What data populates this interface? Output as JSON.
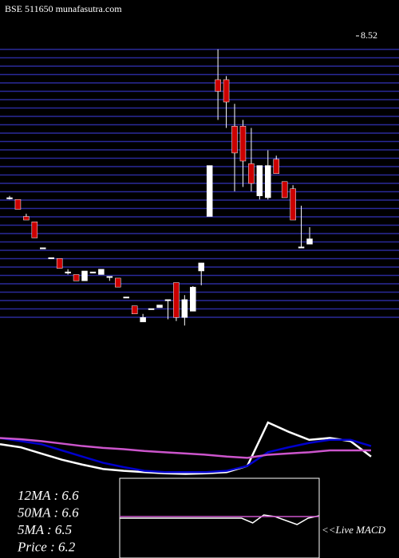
{
  "chart_data": {
    "type": "candlestick",
    "title": "BSE 511650 munafasutra.com",
    "ylim": [
      5.31,
      8.52
    ],
    "yticks": [
      8.52
    ],
    "open": [
      6.71,
      6.69,
      6.5,
      6.44,
      6.15,
      6.04,
      6.03,
      5.88,
      5.85,
      5.78,
      5.88,
      5.85,
      5.83,
      5.81,
      5.6,
      5.5,
      5.32,
      5.47,
      5.48,
      5.57,
      5.76,
      5.37,
      5.44,
      5.89,
      6.5,
      8.03,
      8.03,
      7.51,
      7.51,
      7.09,
      6.73,
      6.71,
      7.14,
      6.89,
      6.81,
      6.16,
      6.19
    ],
    "high": [
      6.73,
      6.69,
      6.53,
      6.44,
      6.15,
      6.04,
      6.03,
      5.91,
      5.85,
      5.89,
      5.88,
      5.91,
      5.83,
      5.81,
      5.6,
      5.5,
      5.41,
      5.47,
      5.51,
      5.57,
      5.76,
      5.62,
      5.72,
      5.98,
      7.07,
      8.37,
      8.07,
      7.76,
      7.58,
      7.49,
      7.07,
      7.24,
      7.18,
      6.89,
      6.85,
      6.62,
      6.38
    ],
    "low": [
      6.69,
      6.58,
      6.46,
      6.26,
      6.15,
      6.04,
      5.92,
      5.85,
      5.78,
      5.78,
      5.88,
      5.85,
      5.78,
      5.71,
      5.6,
      5.41,
      5.32,
      5.47,
      5.48,
      5.35,
      5.33,
      5.28,
      5.44,
      5.73,
      6.5,
      7.58,
      7.49,
      6.78,
      6.83,
      6.78,
      6.69,
      6.69,
      6.98,
      6.71,
      6.46,
      6.16,
      6.19
    ],
    "close": [
      6.71,
      6.58,
      6.46,
      6.26,
      6.15,
      6.04,
      5.92,
      5.88,
      5.78,
      5.89,
      5.88,
      5.91,
      5.83,
      5.71,
      5.6,
      5.41,
      5.37,
      5.47,
      5.51,
      5.57,
      5.37,
      5.57,
      5.71,
      5.98,
      7.07,
      7.9,
      7.78,
      7.21,
      7.12,
      6.87,
      7.07,
      7.07,
      6.98,
      6.71,
      6.46,
      6.16,
      6.25
    ],
    "up_color": "#ffffff",
    "down_color": "#cc0000",
    "indicators": {
      "ylim": [
        -10,
        80
      ],
      "series": [
        {
          "name": "5MA",
          "color": "#ffffff",
          "values": [
            45,
            40,
            30,
            20,
            12,
            5,
            2,
            0,
            -2,
            -3,
            -2,
            0,
            10,
            80,
            65,
            52,
            55,
            50,
            25
          ]
        },
        {
          "name": "12MA",
          "color": "#0000cc",
          "values": [
            55,
            50,
            45,
            35,
            25,
            15,
            8,
            2,
            0,
            0,
            0,
            2,
            10,
            32,
            40,
            47,
            52,
            52,
            42
          ]
        },
        {
          "name": "50MA",
          "color": "#cc55cc",
          "values": [
            55,
            53,
            50,
            46,
            42,
            39,
            37,
            34,
            32,
            30,
            28,
            25,
            23,
            28,
            30,
            32,
            35,
            35,
            35
          ]
        }
      ]
    },
    "macd": {
      "ylim": [
        -50,
        50
      ],
      "series": [
        {
          "color": "#ffffff",
          "values": [
            0,
            0,
            0,
            0,
            0,
            0,
            0,
            0,
            0,
            0,
            0,
            0,
            -6,
            4,
            2,
            -3,
            -8,
            0,
            3
          ]
        },
        {
          "color": "#cc55cc",
          "values": [
            2,
            2,
            2,
            2,
            2,
            2,
            2,
            2,
            2,
            2,
            2,
            2,
            2,
            2,
            2,
            2,
            2,
            2,
            2
          ]
        }
      ],
      "label": "<<Live MACD"
    },
    "legend": [
      "12MA : 6.6",
      "50MA : 6.6",
      "5MA : 6.5",
      "Price  : 6.2"
    ]
  }
}
